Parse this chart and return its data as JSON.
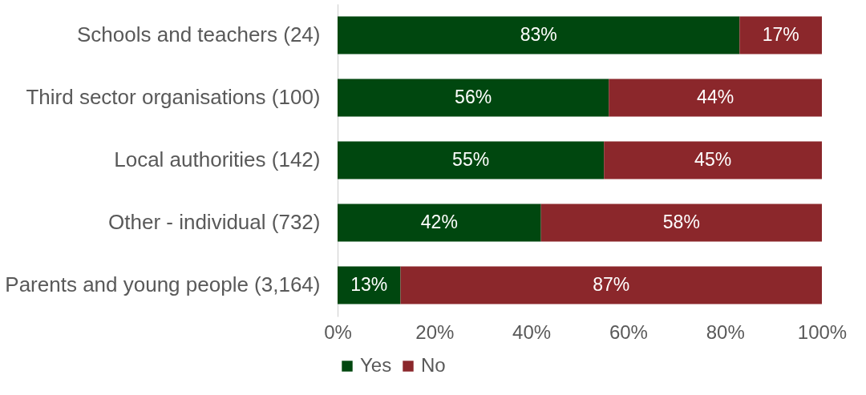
{
  "chart_data": {
    "type": "bar",
    "orientation": "horizontal",
    "stacked": true,
    "categories": [
      "Schools and teachers (24)",
      "Third sector organisations (100)",
      "Local authorities (142)",
      "Other - individual (732)",
      "Parents and young people (3,164)"
    ],
    "series": [
      {
        "name": "Yes",
        "color": "#00470f",
        "values": [
          83,
          56,
          55,
          42,
          13
        ],
        "value_labels": [
          "83%",
          "56%",
          "55%",
          "42%",
          "13%"
        ]
      },
      {
        "name": "No",
        "color": "#8b272b",
        "values": [
          17,
          44,
          45,
          58,
          87
        ],
        "value_labels": [
          "17%",
          "44%",
          "45%",
          "58%",
          "87%"
        ]
      }
    ],
    "xlim": [
      0,
      100
    ],
    "xticks": [
      {
        "value": 0,
        "label": "0%"
      },
      {
        "value": 20,
        "label": "20%"
      },
      {
        "value": 40,
        "label": "40%"
      },
      {
        "value": 60,
        "label": "60%"
      },
      {
        "value": 80,
        "label": "80%"
      },
      {
        "value": 100,
        "label": "100%"
      }
    ],
    "grid": false,
    "legend": "bottom"
  }
}
